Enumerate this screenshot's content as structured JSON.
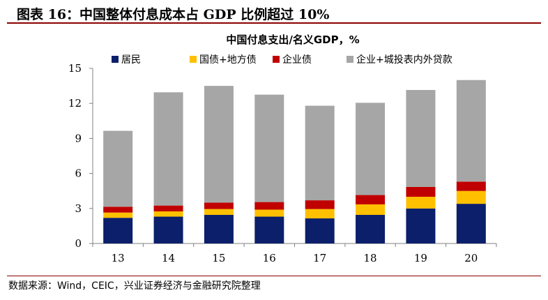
{
  "figure": {
    "title": "图表 16：中国整体付息成本占 GDP 比例超过 10%",
    "source": "数据来源：Wind，CEIC，兴业证券经济与金融研究院整理"
  },
  "colors": {
    "accent": "#8b0000",
    "axis": "#808080"
  },
  "chart_data": {
    "type": "bar",
    "stacked": true,
    "title": "中国付息支出/名义GDP，%",
    "xlabel": "",
    "ylabel": "",
    "categories": [
      "13",
      "14",
      "15",
      "16",
      "17",
      "18",
      "19",
      "20"
    ],
    "ylim": [
      0,
      15
    ],
    "yticks": [
      0,
      3,
      6,
      9,
      12,
      15
    ],
    "grid": false,
    "legend": "top",
    "series": [
      {
        "name": "居民",
        "color": "#0b1f6b",
        "values": [
          2.2,
          2.3,
          2.45,
          2.3,
          2.15,
          2.45,
          3.0,
          3.4
        ]
      },
      {
        "name": "国债+地方债",
        "color": "#ffc000",
        "values": [
          0.45,
          0.45,
          0.5,
          0.6,
          0.8,
          0.9,
          1.0,
          1.1
        ]
      },
      {
        "name": "企业债",
        "color": "#c00000",
        "values": [
          0.5,
          0.5,
          0.55,
          0.65,
          0.75,
          0.8,
          0.85,
          0.8
        ]
      },
      {
        "name": "企业+城投表内外贷款",
        "color": "#a6a6a6",
        "values": [
          6.5,
          9.7,
          10.0,
          9.2,
          8.1,
          7.9,
          8.3,
          8.7
        ]
      }
    ]
  }
}
